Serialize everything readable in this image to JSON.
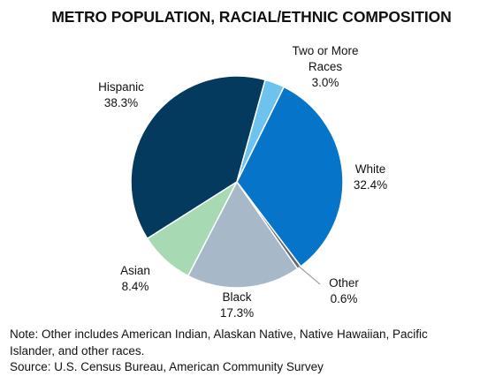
{
  "chart_data": {
    "type": "pie",
    "title": "METRO POPULATION, RACIAL/ETHNIC COMPOSITION",
    "slices": [
      {
        "label": "Two or More Races",
        "value": 3.0,
        "value_label": "3.0%",
        "color": "#6ec3ee"
      },
      {
        "label": "White",
        "value": 32.4,
        "value_label": "32.4%",
        "color": "#0674c8"
      },
      {
        "label": "Other",
        "value": 0.6,
        "value_label": "0.6%",
        "color": "#5c6771"
      },
      {
        "label": "Black",
        "value": 17.3,
        "value_label": "17.3%",
        "color": "#a7b9c9"
      },
      {
        "label": "Asian",
        "value": 8.4,
        "value_label": "8.4%",
        "color": "#a7d9b3"
      },
      {
        "label": "Hispanic",
        "value": 38.3,
        "value_label": "38.3%",
        "color": "#033a5e"
      }
    ],
    "legend": "none (data labels beside slices)"
  },
  "labels": {
    "two_or_more_line1": "Two or More",
    "two_or_more_line2": "Races"
  },
  "notes": {
    "line1": "Note: Other includes American Indian, Alaskan Native, Native Hawaiian, Pacific",
    "line2": "Islander, and other races.",
    "line3": "Source: U.S. Census Bureau, American Community Survey"
  }
}
